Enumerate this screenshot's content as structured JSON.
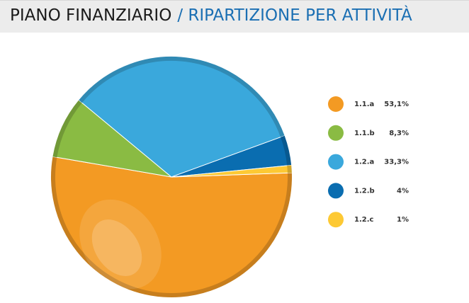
{
  "header": {
    "title": "PIANO FINANZIARIO",
    "subtitle": "/ RIPARTIZIONE PER ATTIVITÀ"
  },
  "chart_data": {
    "type": "pie",
    "categories": [
      "1.1.a",
      "1.1.b",
      "1.2.a",
      "1.2.b",
      "1.2.c"
    ],
    "values": [
      53.1,
      8.3,
      33.3,
      4,
      1
    ],
    "value_labels": [
      "53,1%",
      "8,3%",
      "33,3%",
      "4%",
      "1%"
    ],
    "colors": [
      "#f39a23",
      "#8abb43",
      "#3aa8dc",
      "#0a6db0",
      "#fdc934"
    ],
    "legend": "right"
  }
}
